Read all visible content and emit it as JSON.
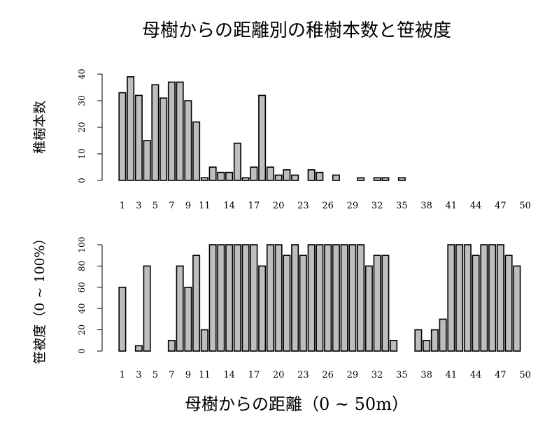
{
  "title": "母樹からの距離別の稚樹本数と笹被度",
  "xlabel": "母樹からの距離（0 ~ 50m）",
  "colors": {
    "bar_fill": "#bebebe",
    "bar_stroke": "#000000",
    "axis": "#000000"
  },
  "chart_data": [
    {
      "type": "bar",
      "ylabel": "稚樹本数",
      "ylim": [
        0,
        40
      ],
      "yticks": [
        0,
        10,
        20,
        30,
        40
      ],
      "x": [
        1,
        2,
        3,
        4,
        5,
        6,
        7,
        8,
        9,
        10,
        11,
        12,
        13,
        14,
        15,
        16,
        17,
        18,
        19,
        20,
        21,
        22,
        23,
        24,
        25,
        26,
        27,
        28,
        29,
        30,
        31,
        32,
        33,
        34,
        35,
        36,
        37,
        38,
        39,
        40,
        41,
        42,
        43,
        44,
        45,
        46,
        47,
        48,
        49,
        50
      ],
      "xtick_labels": [
        "1",
        "3",
        "5",
        "7",
        "9",
        "11",
        "14",
        "17",
        "20",
        "23",
        "26",
        "29",
        "32",
        "35",
        "38",
        "41",
        "44",
        "47",
        "50"
      ],
      "values": [
        33,
        39,
        32,
        15,
        36,
        31,
        37,
        37,
        30,
        22,
        1,
        5,
        3,
        3,
        14,
        1,
        5,
        32,
        5,
        2,
        4,
        2,
        0,
        4,
        3,
        0,
        2,
        0,
        0,
        1,
        0,
        1,
        1,
        0,
        1,
        0,
        0,
        0,
        0,
        0,
        0,
        0,
        0,
        0,
        0,
        0,
        0,
        0,
        0,
        0
      ]
    },
    {
      "type": "bar",
      "ylabel": "笹被度（0 ~ 100%）",
      "ylim": [
        0,
        100
      ],
      "yticks": [
        0,
        20,
        40,
        60,
        80,
        100
      ],
      "x": [
        1,
        2,
        3,
        4,
        5,
        6,
        7,
        8,
        9,
        10,
        11,
        12,
        13,
        14,
        15,
        16,
        17,
        18,
        19,
        20,
        21,
        22,
        23,
        24,
        25,
        26,
        27,
        28,
        29,
        30,
        31,
        32,
        33,
        34,
        35,
        36,
        37,
        38,
        39,
        40,
        41,
        42,
        43,
        44,
        45,
        46,
        47,
        48,
        49,
        50
      ],
      "xtick_labels": [
        "1",
        "3",
        "5",
        "7",
        "9",
        "11",
        "14",
        "17",
        "20",
        "23",
        "26",
        "29",
        "32",
        "35",
        "38",
        "41",
        "44",
        "47",
        "50"
      ],
      "values": [
        60,
        0,
        5,
        80,
        0,
        0,
        10,
        80,
        60,
        90,
        20,
        100,
        100,
        100,
        100,
        100,
        100,
        80,
        100,
        100,
        90,
        100,
        90,
        100,
        100,
        100,
        100,
        100,
        100,
        100,
        80,
        90,
        90,
        10,
        0,
        0,
        20,
        10,
        20,
        30,
        100,
        100,
        100,
        90,
        100,
        100,
        100,
        90,
        80,
        0
      ]
    }
  ]
}
